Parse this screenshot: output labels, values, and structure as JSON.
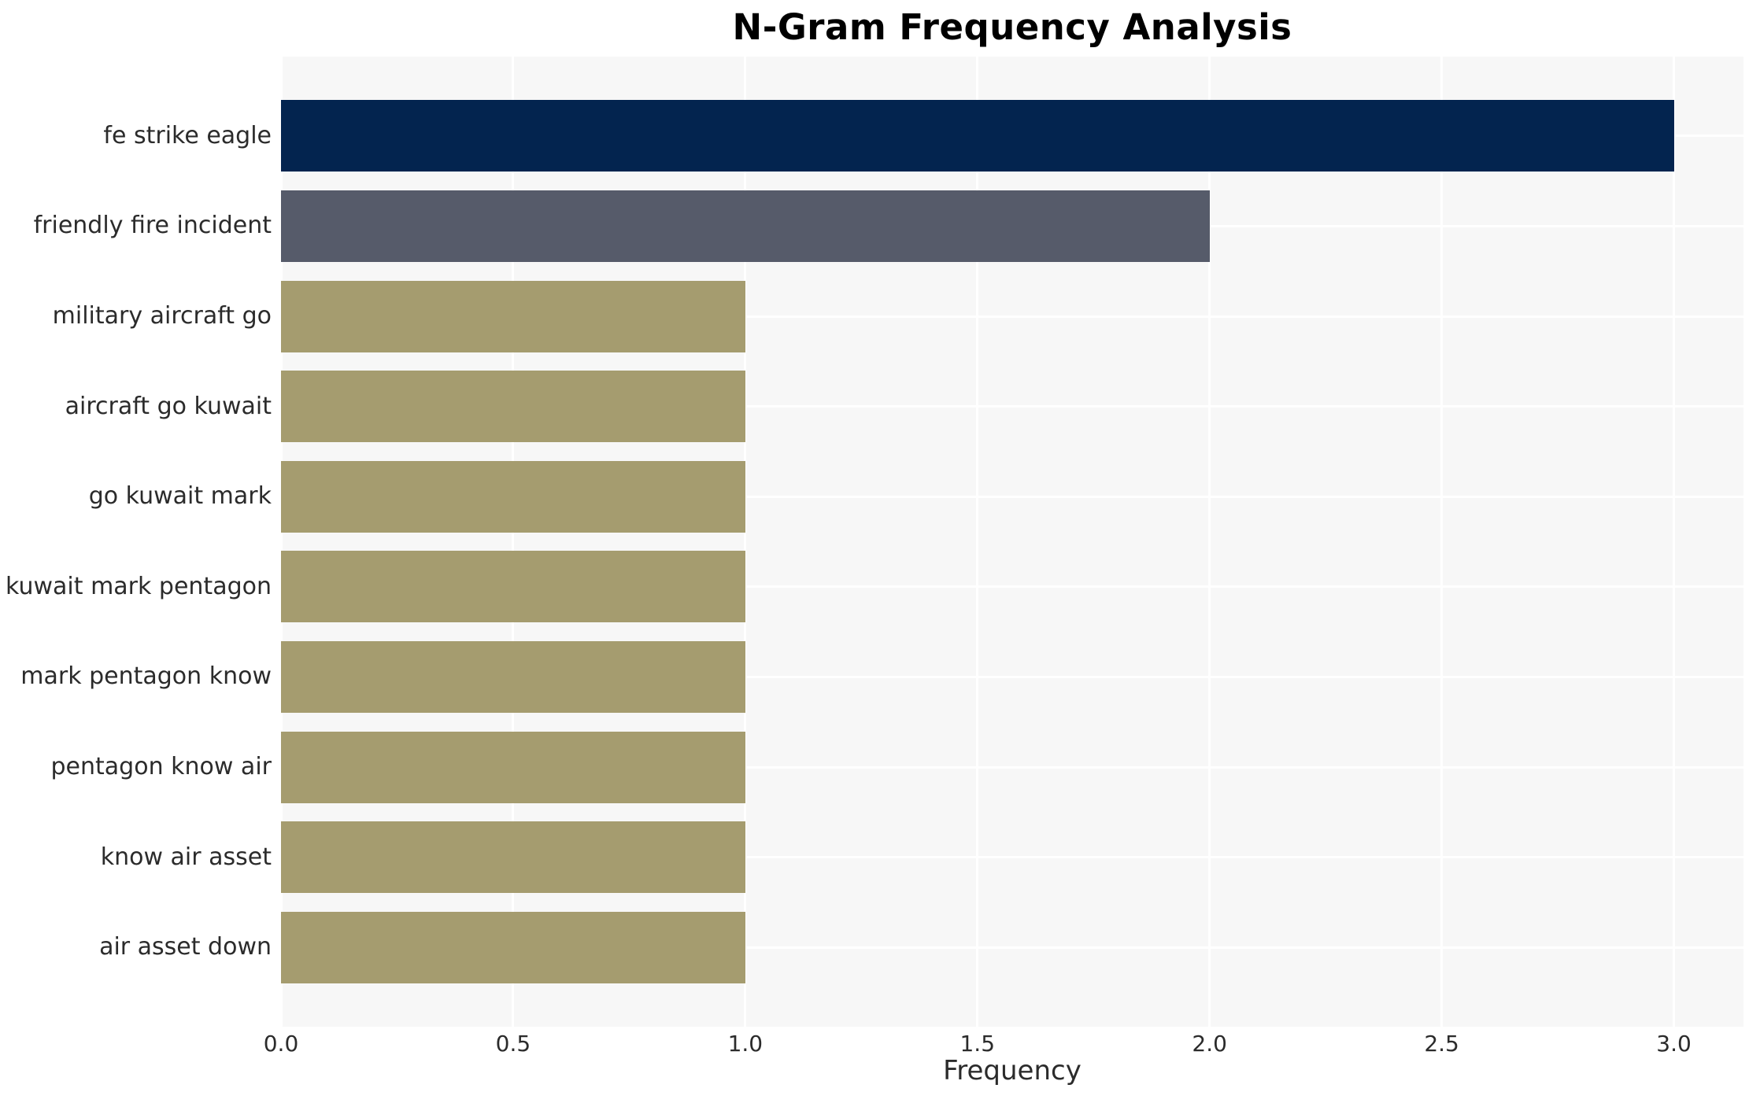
{
  "chart_data": {
    "type": "bar",
    "orientation": "horizontal",
    "title": "N-Gram Frequency Analysis",
    "xlabel": "Frequency",
    "ylabel": "",
    "categories": [
      "fe strike eagle",
      "friendly fire incident",
      "military aircraft go",
      "aircraft go kuwait",
      "go kuwait mark",
      "kuwait mark pentagon",
      "mark pentagon know",
      "pentagon know air",
      "know air asset",
      "air asset down"
    ],
    "values": [
      3,
      2,
      1,
      1,
      1,
      1,
      1,
      1,
      1,
      1
    ],
    "bar_colors": [
      "#03244F",
      "#565B6A",
      "#A59C6F",
      "#A59C6F",
      "#A59C6F",
      "#A59C6F",
      "#A59C6F",
      "#A59C6F",
      "#A59C6F",
      "#A59C6F"
    ],
    "xlim": [
      0,
      3.15
    ],
    "xticks": [
      0.0,
      0.5,
      1.0,
      1.5,
      2.0,
      2.5,
      3.0
    ],
    "xtick_labels": [
      "0.0",
      "0.5",
      "1.0",
      "1.5",
      "2.0",
      "2.5",
      "3.0"
    ],
    "grid": true,
    "legend": false,
    "colors": {
      "figure_bg": "#FFFFFF",
      "plot_bg": "#F7F7F7",
      "gridline": "#FFFFFF",
      "tick_text": "#2B2B2B",
      "title_text": "#000000"
    }
  }
}
